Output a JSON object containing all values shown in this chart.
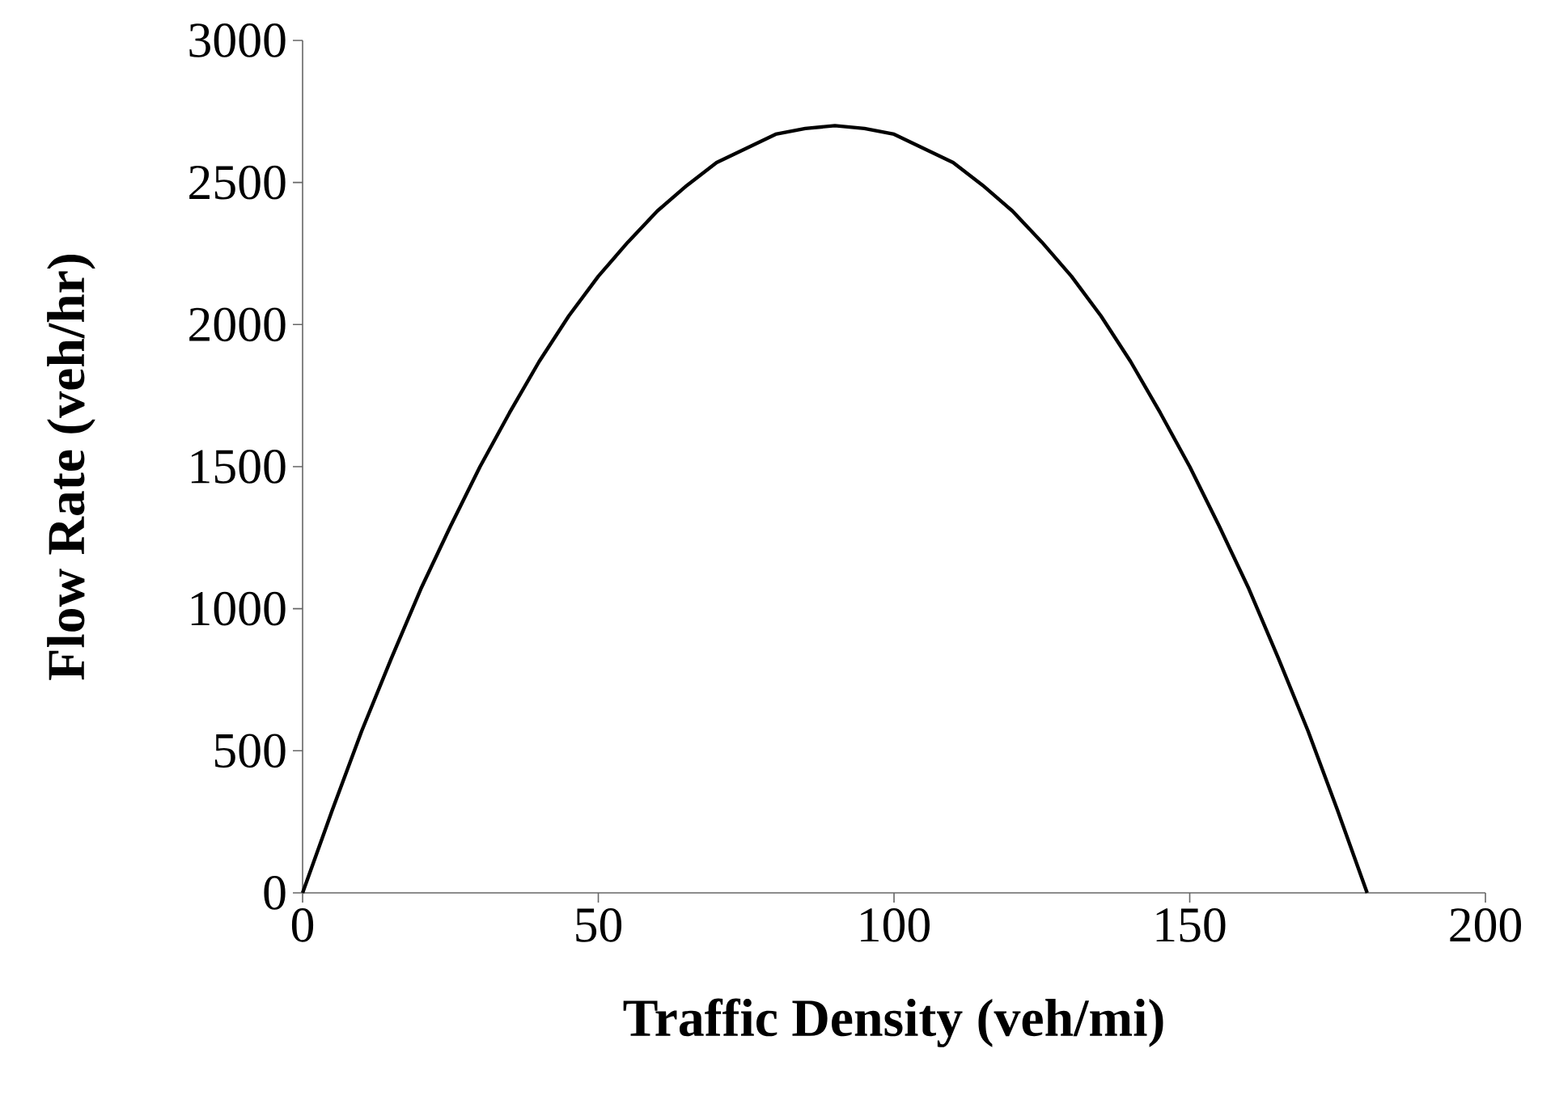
{
  "chart_data": {
    "type": "line",
    "xlabel": "Traffic Density (veh/mi)",
    "ylabel": "Flow Rate (veh/hr)",
    "x": [
      0,
      5,
      10,
      15,
      20,
      25,
      30,
      35,
      40,
      45,
      50,
      55,
      60,
      65,
      70,
      75,
      80,
      85,
      90,
      95,
      100,
      105,
      110,
      115,
      120,
      125,
      130,
      135,
      140,
      145,
      150,
      155,
      160,
      165,
      170,
      175,
      180
    ],
    "series": [
      {
        "color": "#000000",
        "values": [
          0,
          290,
          570,
          825,
          1070,
          1290,
          1500,
          1690,
          1870,
          2030,
          2170,
          2290,
          2400,
          2490,
          2570,
          2620,
          2670,
          2690,
          2700,
          2690,
          2670,
          2620,
          2570,
          2490,
          2400,
          2290,
          2170,
          2030,
          1870,
          1690,
          1500,
          1290,
          1070,
          825,
          570,
          290,
          0
        ]
      }
    ],
    "xlim": [
      0,
      200
    ],
    "ylim": [
      0,
      3000
    ],
    "xticks": [
      0,
      50,
      100,
      150,
      200
    ],
    "yticks": [
      0,
      500,
      1000,
      1500,
      2000,
      2500,
      3000
    ],
    "grid": false,
    "marker": "none",
    "line_style": "solid"
  }
}
